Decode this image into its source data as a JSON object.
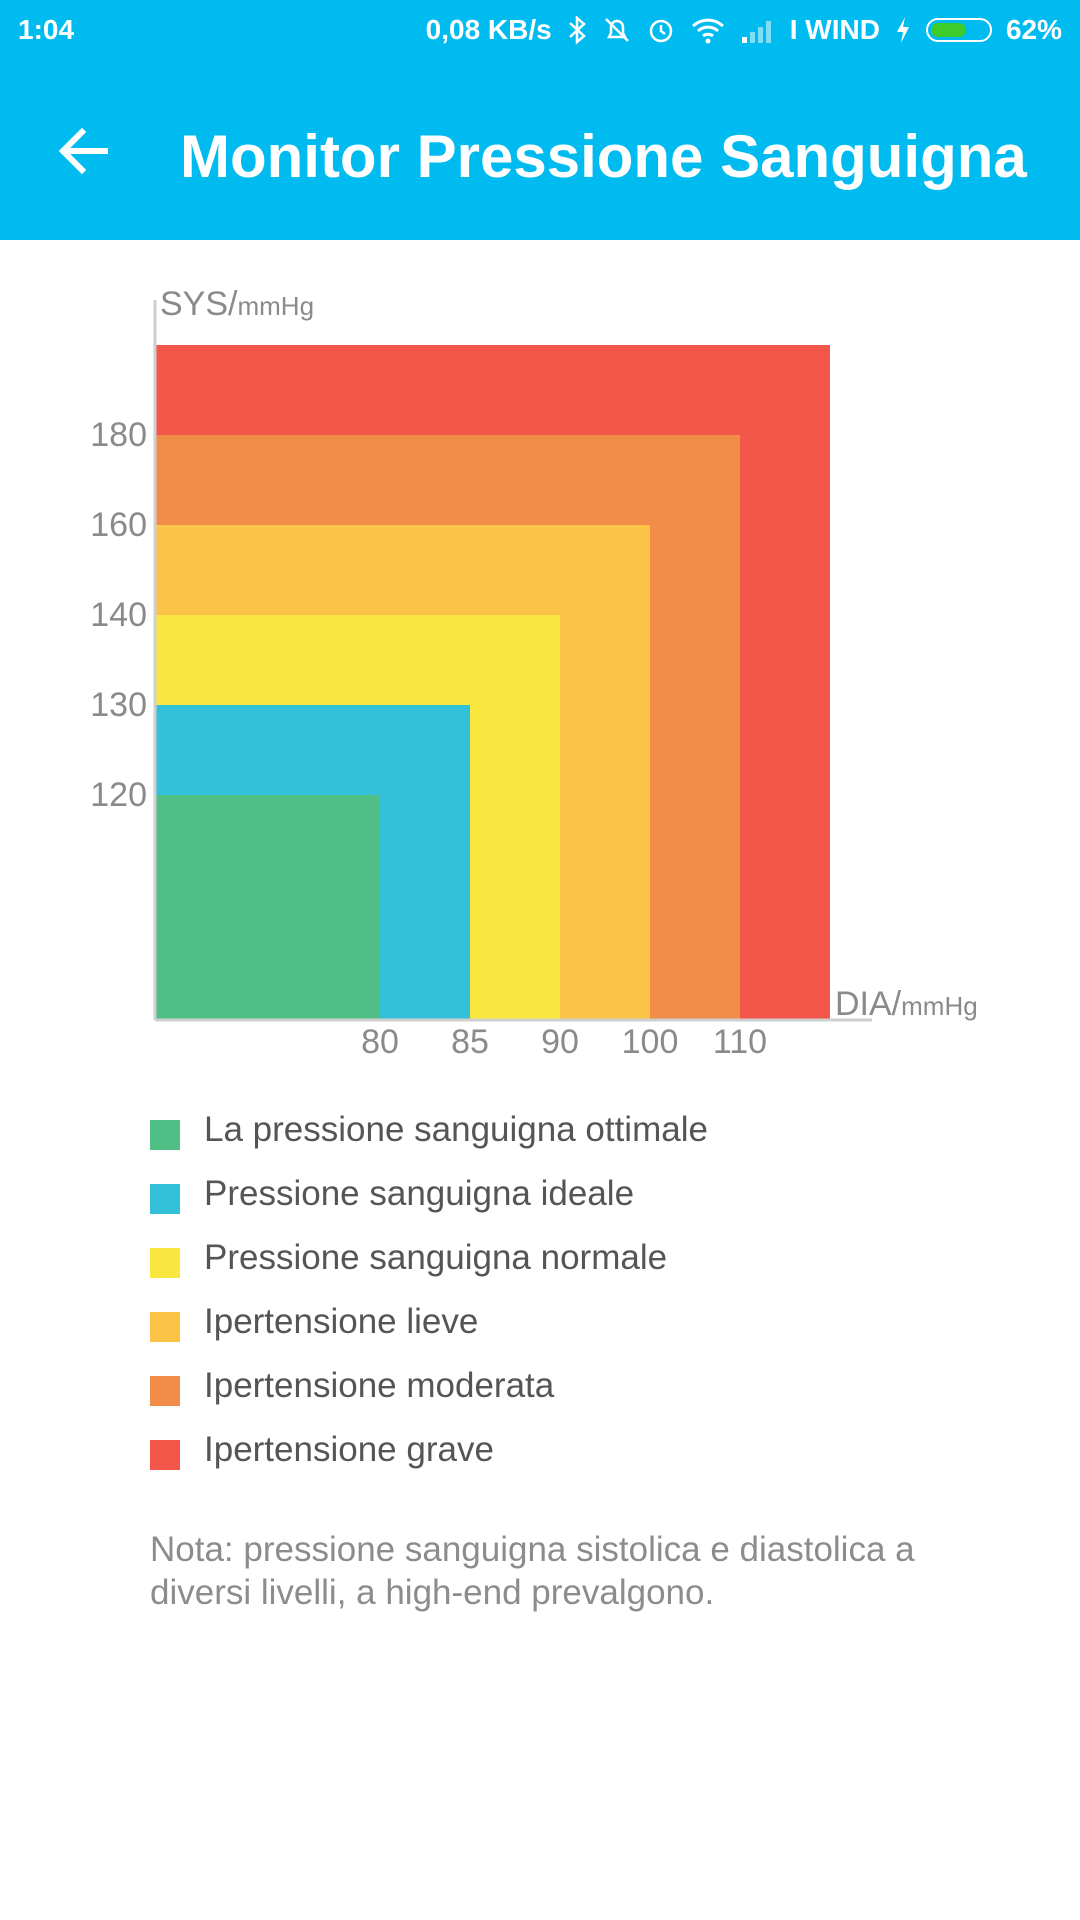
{
  "status_bar": {
    "time": "1:04",
    "speed": "0,08 KB/s",
    "carrier": "I WIND",
    "battery": "62%",
    "battery_level": 0.62
  },
  "app_bar": {
    "title": "Monitor Pressione Sanguigna",
    "back_icon": "arrow-back-icon"
  },
  "chart_data": {
    "type": "zone-chart",
    "y_axis_label": "SYS/",
    "y_axis_unit": "mmHg",
    "x_axis_label": "DIA/",
    "x_axis_unit": "mmHg",
    "y_ticks": [
      "180",
      "160",
      "140",
      "130",
      "120"
    ],
    "x_ticks": [
      "80",
      "85",
      "90",
      "100",
      "110"
    ],
    "zones": [
      {
        "name": "Ipertensione grave",
        "color": "#f2574a",
        "dia_max": null,
        "sys_max": null
      },
      {
        "name": "Ipertensione moderata",
        "color": "#f28d49",
        "dia_max": 110,
        "sys_max": 180
      },
      {
        "name": "Ipertensione lieve",
        "color": "#fbc446",
        "dia_max": 100,
        "sys_max": 160
      },
      {
        "name": "Pressione sanguigna normale",
        "color": "#f9e63e",
        "dia_max": 90,
        "sys_max": 140
      },
      {
        "name": "Pressione sanguigna ideale",
        "color": "#33c1da",
        "dia_max": 85,
        "sys_max": 130
      },
      {
        "name": "La pressione sanguigna ottimale",
        "color": "#4fbf85",
        "dia_max": 80,
        "sys_max": 120
      }
    ]
  },
  "legend": [
    {
      "label": "La pressione sanguigna ottimale",
      "color": "#4fbf85"
    },
    {
      "label": "Pressione sanguigna ideale",
      "color": "#33c1da"
    },
    {
      "label": "Pressione sanguigna normale",
      "color": "#f9e63e"
    },
    {
      "label": "Ipertensione lieve",
      "color": "#fbc446"
    },
    {
      "label": "Ipertensione moderata",
      "color": "#f28d49"
    },
    {
      "label": "Ipertensione grave",
      "color": "#f2574a"
    }
  ],
  "note": "Nota: pressione sanguigna sistolica e diastolica a diversi livelli, a high-end prevalgono."
}
